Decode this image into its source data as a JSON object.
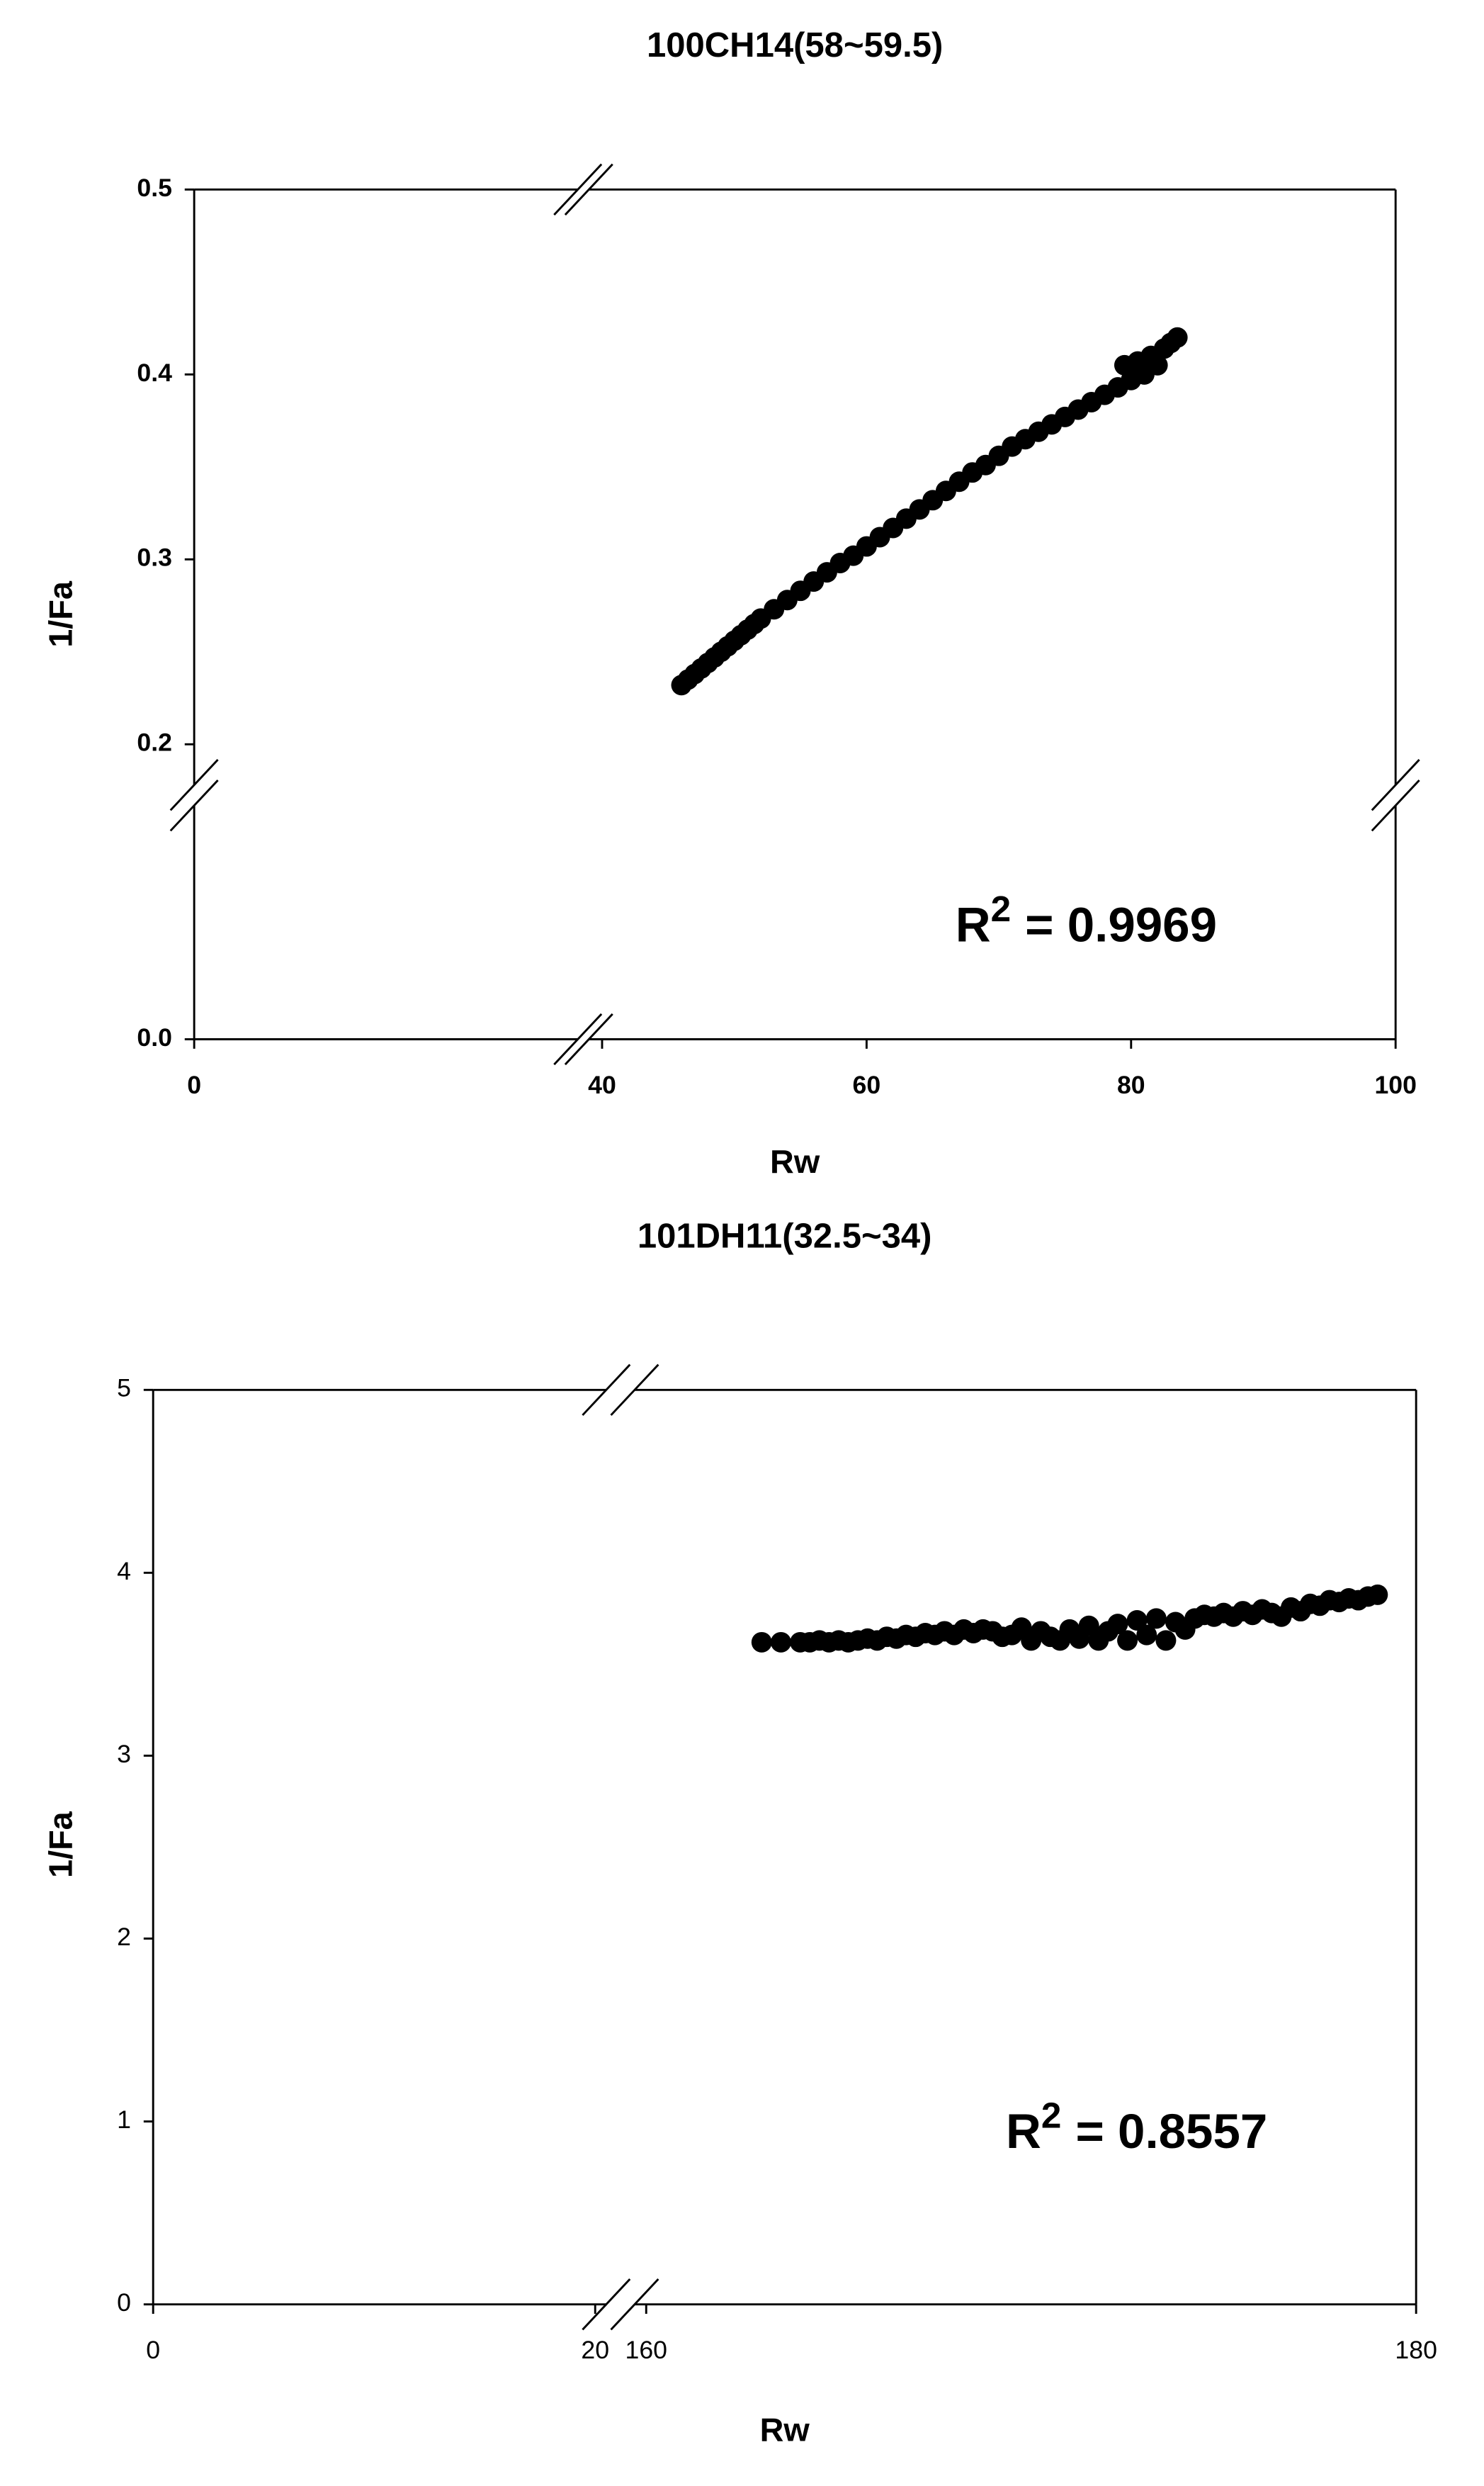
{
  "chart_data": [
    {
      "type": "scatter",
      "title": "100CH14(58~59.5)",
      "xlabel": "Rw",
      "ylabel": "1/Fa",
      "color": "#000000",
      "x": [
        46,
        46.5,
        47,
        47.5,
        48,
        48.5,
        49,
        49.5,
        50,
        50.5,
        51,
        51.5,
        52,
        53,
        54,
        55,
        56,
        57,
        58,
        59,
        60,
        61,
        62,
        63,
        64,
        65,
        66,
        67,
        68,
        69,
        70,
        71,
        72,
        73,
        74,
        75,
        76,
        77,
        78,
        79,
        79.5,
        80,
        80.5,
        81,
        81.5,
        82,
        82.5,
        83,
        83.5
      ],
      "y": [
        0.232,
        0.235,
        0.238,
        0.241,
        0.244,
        0.247,
        0.25,
        0.253,
        0.256,
        0.259,
        0.262,
        0.265,
        0.268,
        0.273,
        0.278,
        0.283,
        0.288,
        0.293,
        0.298,
        0.302,
        0.307,
        0.312,
        0.317,
        0.322,
        0.327,
        0.332,
        0.337,
        0.342,
        0.347,
        0.351,
        0.356,
        0.361,
        0.365,
        0.369,
        0.373,
        0.377,
        0.381,
        0.385,
        0.389,
        0.393,
        0.405,
        0.397,
        0.407,
        0.4,
        0.41,
        0.405,
        0.414,
        0.417,
        0.42
      ],
      "xsegments": [
        [
          0,
          29
        ],
        [
          39,
          100
        ]
      ],
      "ysegments": [
        [
          0,
          0.125
        ],
        [
          0.178,
          0.5
        ]
      ],
      "xticks": [
        0,
        40,
        60,
        80,
        100
      ],
      "yticks": [
        {
          "value": 0,
          "label": "0.0"
        },
        0.2,
        0.3,
        0.4,
        0.5
      ],
      "annotation": {
        "base": "R",
        "superscript": "2",
        "text": "= 0.9969"
      }
    },
    {
      "type": "scatter",
      "title": "101DH11(32.5~34)",
      "xlabel": "Rw",
      "ylabel": "1/Fa",
      "color": "#000000",
      "x": [
        163,
        163.5,
        164,
        164.25,
        164.5,
        164.75,
        165,
        165.25,
        165.5,
        165.75,
        166,
        166.25,
        166.5,
        166.75,
        167,
        167.25,
        167.5,
        167.75,
        168,
        168.25,
        168.5,
        168.75,
        169,
        169.25,
        169.5,
        169.75,
        170,
        170.25,
        170.5,
        170.75,
        171,
        171.25,
        171.5,
        171.75,
        172,
        172.25,
        172.5,
        172.75,
        173,
        173.25,
        173.5,
        173.75,
        174,
        174.25,
        174.5,
        174.75,
        175,
        175.25,
        175.5,
        175.75,
        176,
        176.25,
        176.5,
        176.75,
        177,
        177.25,
        177.5,
        177.75,
        178,
        178.25,
        178.5,
        178.75,
        179
      ],
      "y": [
        3.62,
        3.62,
        3.62,
        3.62,
        3.63,
        3.62,
        3.63,
        3.62,
        3.63,
        3.64,
        3.63,
        3.65,
        3.64,
        3.66,
        3.65,
        3.67,
        3.66,
        3.68,
        3.66,
        3.69,
        3.67,
        3.69,
        3.68,
        3.65,
        3.66,
        3.7,
        3.63,
        3.68,
        3.65,
        3.63,
        3.69,
        3.64,
        3.71,
        3.63,
        3.68,
        3.72,
        3.63,
        3.74,
        3.66,
        3.75,
        3.63,
        3.73,
        3.69,
        3.75,
        3.77,
        3.76,
        3.78,
        3.76,
        3.79,
        3.77,
        3.8,
        3.78,
        3.76,
        3.81,
        3.79,
        3.83,
        3.82,
        3.85,
        3.84,
        3.86,
        3.85,
        3.87,
        3.88
      ],
      "xsegments": [
        [
          0,
          20.5
        ],
        [
          159.7,
          180
        ]
      ],
      "ysegments": [
        [
          0,
          5
        ]
      ],
      "xticks": [
        0,
        20,
        160,
        180
      ],
      "yticks": [
        0,
        1,
        2,
        3,
        4,
        5
      ],
      "annotation": {
        "base": "R",
        "superscript": "2",
        "text": "= 0.8557"
      }
    }
  ]
}
